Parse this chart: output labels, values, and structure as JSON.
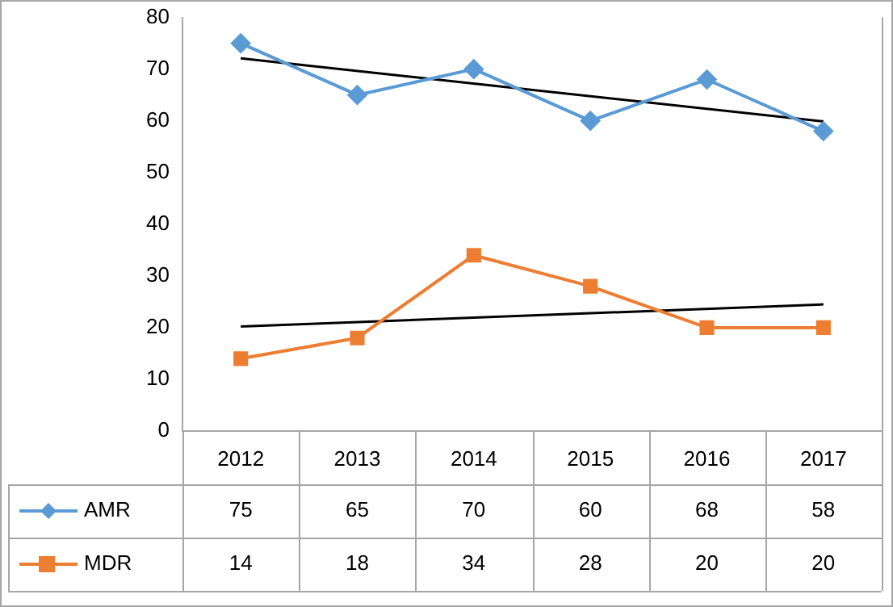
{
  "chart_data": {
    "type": "line",
    "categories": [
      "2012",
      "2013",
      "2014",
      "2015",
      "2016",
      "2017"
    ],
    "series": [
      {
        "name": "AMR",
        "color": "#5b9bd5",
        "marker": "diamond",
        "values": [
          75,
          65,
          70,
          60,
          68,
          58
        ],
        "value_labels": [
          "75",
          "65",
          "70",
          "60",
          "68",
          "58"
        ]
      },
      {
        "name": "MDR",
        "color": "#ed7d31",
        "marker": "square",
        "values": [
          14,
          18,
          34,
          28,
          20,
          20
        ],
        "value_labels": [
          "14",
          "18",
          "34",
          "28",
          "20",
          "20"
        ]
      },
      {
        "type": "line",
        "color": "#000000",
        "marker": "none",
        "values": [
          72.1,
          null,
          null,
          null,
          null,
          59.9
        ]
      },
      {
        "type": "line",
        "color": "#000000",
        "marker": "none",
        "values": [
          20.2,
          null,
          null,
          null,
          null,
          24.5
        ]
      }
    ],
    "ylim": [
      0,
      80
    ],
    "yticks": [
      0,
      10,
      20,
      30,
      40,
      50,
      60,
      70,
      80
    ],
    "grid": false,
    "legend": "bottom"
  }
}
